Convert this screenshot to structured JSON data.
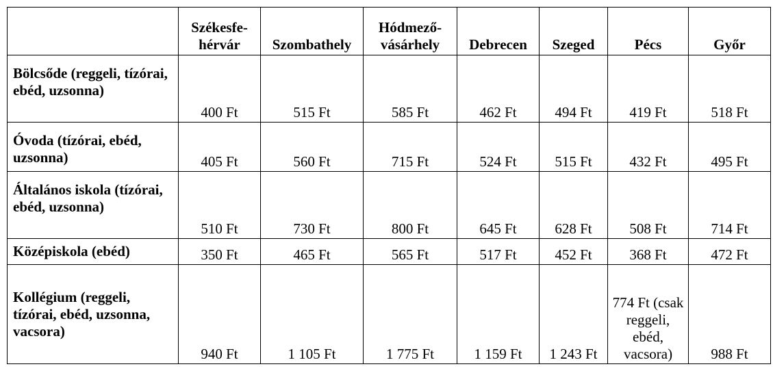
{
  "table": {
    "corner": "",
    "columns": [
      "Székesfe-hérvár",
      "Szombathely",
      "Hódmező-vásárhely",
      "Debrecen",
      "Szeged",
      "Pécs",
      "Győr"
    ],
    "rows": [
      {
        "label": "Bölcsőde (reggeli, tízórai, ebéd, uzsonna)",
        "values": [
          "400 Ft",
          "515 Ft",
          "585 Ft",
          "462 Ft",
          "494 Ft",
          "419 Ft",
          "518 Ft"
        ]
      },
      {
        "label": "Óvoda (tízórai, ebéd, uzsonna)",
        "values": [
          "405 Ft",
          "560 Ft",
          "715 Ft",
          "524 Ft",
          "515 Ft",
          "432 Ft",
          "495 Ft"
        ]
      },
      {
        "label": "Általános iskola (tízórai, ebéd, uzsonna)",
        "values": [
          "510 Ft",
          "730 Ft",
          "800 Ft",
          "645 Ft",
          "628 Ft",
          "508 Ft",
          "714 Ft"
        ]
      },
      {
        "label": "Középiskola (ebéd)",
        "values": [
          "350 Ft",
          "465 Ft",
          "565 Ft",
          "517 Ft",
          "452 Ft",
          "368 Ft",
          "472 Ft"
        ]
      },
      {
        "label": "Kollégium (reggeli, tízórai, ebéd, uzsonna, vacsora)",
        "values": [
          "940 Ft",
          "1 105 Ft",
          "1 775 Ft",
          "1 159 Ft",
          "1 243 Ft",
          "774 Ft (csak reggeli, ebéd, vacsora)",
          "988 Ft"
        ]
      }
    ]
  }
}
